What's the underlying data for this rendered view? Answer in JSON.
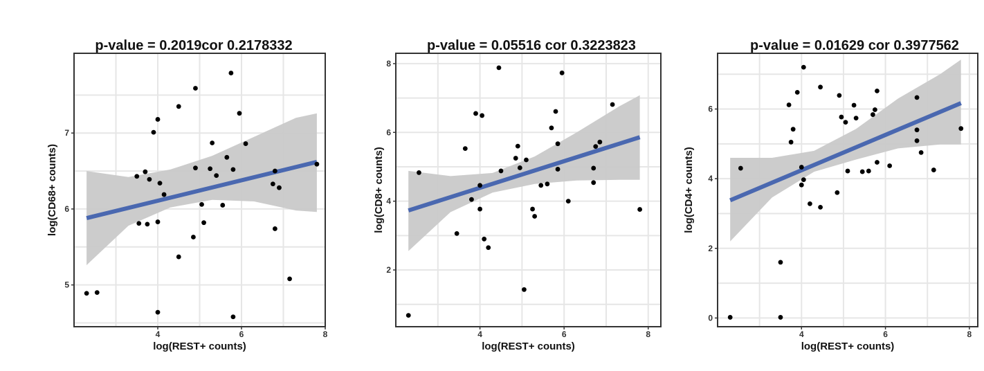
{
  "chart_data": [
    {
      "type": "scatter",
      "title": "p-value = 0.2019cor 0.2178332",
      "xlabel": "log(REST+ counts)",
      "ylabel": "log(CD68+ counts)",
      "xlim": [
        2.0,
        8.0
      ],
      "ylim": [
        4.45,
        8.05
      ],
      "xticks": [
        4,
        6,
        8
      ],
      "yticks": [
        5,
        6,
        7
      ],
      "grid": true,
      "points": [
        [
          2.3,
          4.89
        ],
        [
          2.55,
          4.9
        ],
        [
          3.5,
          6.43
        ],
        [
          3.7,
          6.49
        ],
        [
          3.8,
          6.39
        ],
        [
          3.9,
          7.01
        ],
        [
          4.0,
          7.18
        ],
        [
          4.05,
          6.34
        ],
        [
          4.15,
          6.19
        ],
        [
          3.55,
          5.81
        ],
        [
          3.75,
          5.8
        ],
        [
          4.0,
          5.83
        ],
        [
          4.0,
          4.64
        ],
        [
          4.5,
          7.35
        ],
        [
          4.5,
          5.37
        ],
        [
          4.85,
          5.63
        ],
        [
          4.9,
          7.59
        ],
        [
          4.9,
          6.54
        ],
        [
          5.05,
          6.06
        ],
        [
          5.1,
          5.82
        ],
        [
          5.25,
          6.53
        ],
        [
          5.3,
          6.87
        ],
        [
          5.4,
          6.44
        ],
        [
          5.55,
          6.05
        ],
        [
          5.65,
          6.68
        ],
        [
          5.75,
          7.79
        ],
        [
          5.8,
          6.52
        ],
        [
          5.8,
          4.58
        ],
        [
          5.95,
          7.26
        ],
        [
          6.1,
          6.86
        ],
        [
          6.75,
          6.33
        ],
        [
          6.8,
          6.5
        ],
        [
          6.8,
          5.74
        ],
        [
          6.9,
          6.28
        ],
        [
          7.15,
          5.08
        ],
        [
          7.8,
          6.59
        ]
      ],
      "fit": {
        "x": [
          2.3,
          7.8
        ],
        "y": [
          5.88,
          6.62
        ]
      },
      "band": {
        "x": [
          2.3,
          3.3,
          4.3,
          5.3,
          6.3,
          7.3,
          7.8
        ],
        "lower": [
          5.26,
          5.78,
          6.02,
          6.12,
          6.1,
          5.98,
          5.96
        ],
        "upper": [
          6.5,
          6.42,
          6.52,
          6.7,
          6.95,
          7.2,
          7.26
        ]
      },
      "colors": {
        "fit": "#4A68B0",
        "band": "#C9C9C9",
        "point": "#000000"
      }
    },
    {
      "type": "scatter",
      "title": "p-value = 0.05516 cor 0.3223823",
      "xlabel": "log(REST+ counts)",
      "ylabel": "log(CD8+ counts)",
      "xlim": [
        2.0,
        8.3
      ],
      "ylim": [
        0.35,
        8.3
      ],
      "xticks": [
        4,
        6,
        8
      ],
      "yticks": [
        2,
        4,
        6,
        8
      ],
      "grid": true,
      "points": [
        [
          2.3,
          0.68
        ],
        [
          2.55,
          4.83
        ],
        [
          3.45,
          3.06
        ],
        [
          3.65,
          5.53
        ],
        [
          3.8,
          4.05
        ],
        [
          3.9,
          6.55
        ],
        [
          4.0,
          4.46
        ],
        [
          4.0,
          3.77
        ],
        [
          4.05,
          6.49
        ],
        [
          4.1,
          2.9
        ],
        [
          4.2,
          2.65
        ],
        [
          4.45,
          7.88
        ],
        [
          4.5,
          4.88
        ],
        [
          4.85,
          5.25
        ],
        [
          4.9,
          5.6
        ],
        [
          4.95,
          4.97
        ],
        [
          5.05,
          1.43
        ],
        [
          5.1,
          5.2
        ],
        [
          5.25,
          3.77
        ],
        [
          5.3,
          3.56
        ],
        [
          5.45,
          4.46
        ],
        [
          5.6,
          4.5
        ],
        [
          5.7,
          6.13
        ],
        [
          5.8,
          6.61
        ],
        [
          5.85,
          4.93
        ],
        [
          5.85,
          5.67
        ],
        [
          5.95,
          7.73
        ],
        [
          6.1,
          4.0
        ],
        [
          6.7,
          4.96
        ],
        [
          6.7,
          4.54
        ],
        [
          6.75,
          5.59
        ],
        [
          6.85,
          5.72
        ],
        [
          7.15,
          6.81
        ],
        [
          7.8,
          3.76
        ]
      ],
      "fit": {
        "x": [
          2.3,
          7.8
        ],
        "y": [
          3.73,
          5.86
        ]
      },
      "band": {
        "x": [
          2.3,
          3.3,
          4.3,
          5.3,
          6.3,
          7.3,
          7.8
        ],
        "lower": [
          2.55,
          3.68,
          4.25,
          4.5,
          4.6,
          4.62,
          4.62
        ],
        "upper": [
          4.88,
          4.73,
          4.82,
          5.3,
          6.0,
          6.75,
          7.08
        ]
      },
      "colors": {
        "fit": "#4A68B0",
        "band": "#C9C9C9",
        "point": "#000000"
      }
    },
    {
      "type": "scatter",
      "title": "p-value = 0.01629  cor 0.3977562",
      "xlabel": "log(REST+ counts)",
      "ylabel": "log(CD4+ counts)",
      "xlim": [
        2.0,
        8.2
      ],
      "ylim": [
        -0.25,
        7.6
      ],
      "xticks": [
        4,
        6,
        8
      ],
      "yticks": [
        0,
        2,
        4,
        6
      ],
      "grid": true,
      "points": [
        [
          2.3,
          0.02
        ],
        [
          2.55,
          4.3
        ],
        [
          3.5,
          0.02
        ],
        [
          3.5,
          1.6
        ],
        [
          3.7,
          6.12
        ],
        [
          3.75,
          5.05
        ],
        [
          3.8,
          5.42
        ],
        [
          3.9,
          6.48
        ],
        [
          4.0,
          3.82
        ],
        [
          4.0,
          4.33
        ],
        [
          4.05,
          7.2
        ],
        [
          4.05,
          3.97
        ],
        [
          4.2,
          3.28
        ],
        [
          4.45,
          3.18
        ],
        [
          4.45,
          6.63
        ],
        [
          4.85,
          3.6
        ],
        [
          4.9,
          6.39
        ],
        [
          4.95,
          5.77
        ],
        [
          5.05,
          5.62
        ],
        [
          5.1,
          4.22
        ],
        [
          5.25,
          6.11
        ],
        [
          5.3,
          5.74
        ],
        [
          5.45,
          4.2
        ],
        [
          5.6,
          4.22
        ],
        [
          5.7,
          5.84
        ],
        [
          5.75,
          5.98
        ],
        [
          5.8,
          4.47
        ],
        [
          5.8,
          6.52
        ],
        [
          6.1,
          4.37
        ],
        [
          6.75,
          5.4
        ],
        [
          6.75,
          5.09
        ],
        [
          6.75,
          6.33
        ],
        [
          6.85,
          4.75
        ],
        [
          7.15,
          4.25
        ],
        [
          7.8,
          5.44
        ]
      ],
      "fit": {
        "x": [
          2.3,
          7.8
        ],
        "y": [
          3.38,
          6.17
        ]
      },
      "band": {
        "x": [
          2.3,
          3.3,
          4.3,
          5.3,
          6.3,
          7.3,
          7.8
        ],
        "lower": [
          2.2,
          3.46,
          4.2,
          4.55,
          4.87,
          4.98,
          4.98
        ],
        "upper": [
          4.6,
          4.6,
          4.8,
          5.43,
          6.3,
          7.0,
          7.42
        ]
      },
      "colors": {
        "fit": "#4A68B0",
        "band": "#C9C9C9",
        "point": "#000000"
      }
    }
  ]
}
